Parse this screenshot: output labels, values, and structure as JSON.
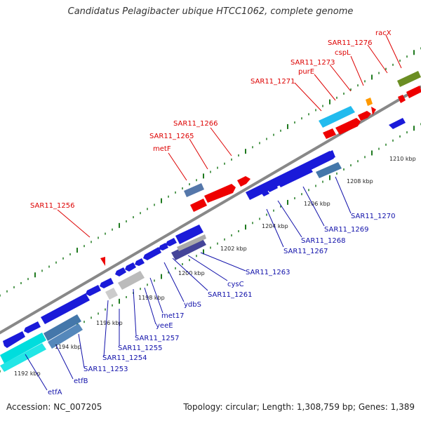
{
  "title": "Candidatus Pelagibacter ubique HTCC1062, complete genome",
  "footer": {
    "accession": "Accession: NC_007205",
    "topology": "Topology: circular; Length: 1,308,759 bp; Genes: 1,389"
  },
  "colors": {
    "backbone": "#888888",
    "tick": "#1f7a1f",
    "label_top": "#dd0000",
    "label_bottom": "#1010aa",
    "kbp_label": "#222222"
  },
  "kbp_labels": [
    "1192 kbp",
    "1194 kbp",
    "1196 kbp",
    "1198 kbp",
    "1200 kbp",
    "1202 kbp",
    "1204 kbp",
    "1206 kbp",
    "1208 kbp",
    "1210 kbp"
  ],
  "top_gene_labels": [
    "SAR11_1256",
    "metF",
    "SAR11_1265",
    "SAR11_1266",
    "SAR11_1271",
    "purE",
    "SAR11_1273",
    "cspL",
    "SAR11_1276",
    "racX"
  ],
  "bottom_gene_labels": [
    "etfA",
    "etfB",
    "SAR11_1253",
    "SAR11_1254",
    "SAR11_1255",
    "SAR11_1257",
    "yeeE",
    "met17",
    "ydbS",
    "SAR11_1261",
    "cysC",
    "SAR11_1263",
    "SAR11_1267",
    "SAR11_1268",
    "SAR11_1269",
    "SAR11_1270"
  ]
}
